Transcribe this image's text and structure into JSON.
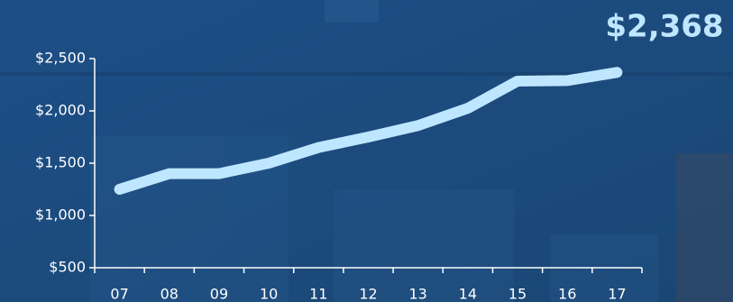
{
  "chart_data": {
    "type": "line",
    "annotation": "$2,368",
    "categories": [
      "07",
      "08",
      "09",
      "10",
      "11",
      "12",
      "13",
      "14",
      "15",
      "16",
      "17"
    ],
    "values": [
      1250,
      1400,
      1400,
      1500,
      1650,
      1750,
      1860,
      2025,
      2285,
      2290,
      2368
    ],
    "color": "#bfe6ff",
    "ylim": [
      500,
      2500
    ],
    "yticks": [
      {
        "value": 500,
        "label": "$500"
      },
      {
        "value": 1000,
        "label": "$1,000"
      },
      {
        "value": 1500,
        "label": "$1,500"
      },
      {
        "value": 2000,
        "label": "$2,000"
      },
      {
        "value": 2500,
        "label": "$2,500"
      }
    ]
  }
}
